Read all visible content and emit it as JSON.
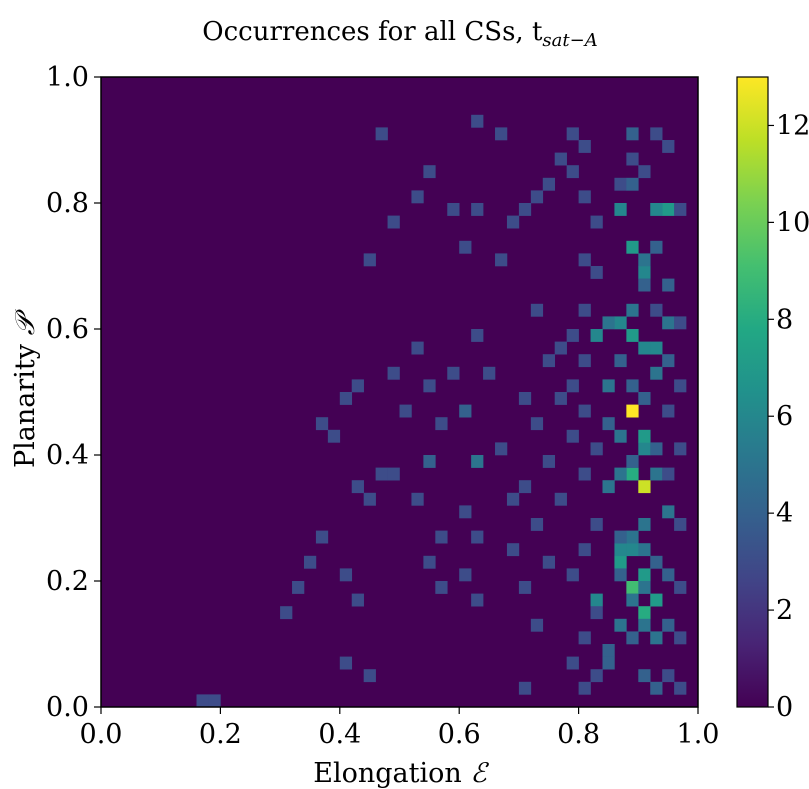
{
  "chart_data": {
    "type": "heatmap",
    "title": "Occurrences for all CSs, t",
    "title_subscript": "sat−A",
    "xlabel": "Elongation",
    "xlabel_symbol": "ℰ",
    "ylabel": "Planarity",
    "ylabel_symbol": "𝒫",
    "xlim": [
      0.0,
      1.0
    ],
    "ylim": [
      0.0,
      1.0
    ],
    "xticks": [
      0.0,
      0.2,
      0.4,
      0.6,
      0.8,
      1.0
    ],
    "xtick_labels": [
      "0.0",
      "0.2",
      "0.4",
      "0.6",
      "0.8",
      "1.0"
    ],
    "yticks": [
      0.0,
      0.2,
      0.4,
      0.6,
      0.8,
      1.0
    ],
    "ytick_labels": [
      "0.0",
      "0.2",
      "0.4",
      "0.6",
      "0.8",
      "1.0"
    ],
    "bins": [
      50,
      50
    ],
    "colormap": "viridis",
    "colorbar": {
      "min": 0,
      "max": 13,
      "ticks": [
        0,
        2,
        4,
        6,
        8,
        10,
        12
      ],
      "tick_labels": [
        "0",
        "2",
        "4",
        "6",
        "8",
        "10",
        "12"
      ]
    },
    "cells": [
      [
        0.89,
        0.465,
        13
      ],
      [
        0.91,
        0.34,
        12
      ],
      [
        0.89,
        0.36,
        8
      ],
      [
        0.87,
        0.23,
        7
      ],
      [
        0.89,
        0.19,
        9
      ],
      [
        0.91,
        0.15,
        8
      ],
      [
        0.93,
        0.16,
        7
      ],
      [
        0.91,
        0.21,
        7
      ],
      [
        0.89,
        0.25,
        6
      ],
      [
        0.87,
        0.25,
        6
      ],
      [
        0.91,
        0.41,
        6
      ],
      [
        0.91,
        0.43,
        7
      ],
      [
        0.89,
        0.59,
        7
      ],
      [
        0.87,
        0.61,
        6
      ],
      [
        0.91,
        0.57,
        6
      ],
      [
        0.93,
        0.57,
        6
      ],
      [
        0.95,
        0.61,
        5
      ],
      [
        0.95,
        0.78,
        7
      ],
      [
        0.93,
        0.79,
        6
      ],
      [
        0.87,
        0.79,
        6
      ],
      [
        0.89,
        0.73,
        7
      ],
      [
        0.91,
        0.69,
        6
      ],
      [
        0.83,
        0.59,
        6
      ],
      [
        0.83,
        0.17,
        6
      ],
      [
        0.85,
        0.35,
        5
      ],
      [
        0.85,
        0.61,
        5
      ],
      [
        0.89,
        0.91,
        4
      ],
      [
        0.89,
        0.87,
        3
      ],
      [
        0.87,
        0.83,
        3
      ],
      [
        0.91,
        0.71,
        5
      ],
      [
        0.93,
        0.73,
        4
      ],
      [
        0.91,
        0.67,
        4
      ],
      [
        0.89,
        0.63,
        5
      ],
      [
        0.87,
        0.55,
        4
      ],
      [
        0.85,
        0.51,
        5
      ],
      [
        0.89,
        0.51,
        4
      ],
      [
        0.93,
        0.53,
        5
      ],
      [
        0.95,
        0.55,
        4
      ],
      [
        0.91,
        0.49,
        4
      ],
      [
        0.85,
        0.45,
        4
      ],
      [
        0.87,
        0.43,
        5
      ],
      [
        0.93,
        0.41,
        4
      ],
      [
        0.89,
        0.39,
        4
      ],
      [
        0.87,
        0.37,
        5
      ],
      [
        0.93,
        0.37,
        5
      ],
      [
        0.95,
        0.31,
        5
      ],
      [
        0.91,
        0.29,
        5
      ],
      [
        0.89,
        0.27,
        5
      ],
      [
        0.87,
        0.27,
        4
      ],
      [
        0.91,
        0.25,
        5
      ],
      [
        0.93,
        0.23,
        4
      ],
      [
        0.87,
        0.21,
        4
      ],
      [
        0.91,
        0.19,
        5
      ],
      [
        0.89,
        0.17,
        5
      ],
      [
        0.87,
        0.13,
        5
      ],
      [
        0.89,
        0.11,
        4
      ],
      [
        0.91,
        0.13,
        5
      ],
      [
        0.93,
        0.11,
        5
      ],
      [
        0.85,
        0.07,
        4
      ],
      [
        0.91,
        0.05,
        4
      ],
      [
        0.93,
        0.03,
        4
      ],
      [
        0.85,
        0.09,
        4
      ],
      [
        0.95,
        0.21,
        4
      ],
      [
        0.95,
        0.13,
        4
      ],
      [
        0.61,
        0.47,
        4
      ],
      [
        0.63,
        0.39,
        5
      ],
      [
        0.55,
        0.39,
        4
      ],
      [
        0.47,
        0.37,
        3
      ],
      [
        0.47,
        0.91,
        3
      ],
      [
        0.89,
        0.83,
        4
      ],
      [
        0.91,
        0.85,
        3
      ],
      [
        0.93,
        0.91,
        3
      ],
      [
        0.95,
        0.89,
        3
      ],
      [
        0.97,
        0.79,
        3
      ],
      [
        0.93,
        0.63,
        3
      ],
      [
        0.97,
        0.61,
        3
      ],
      [
        0.95,
        0.67,
        4
      ],
      [
        0.97,
        0.51,
        3
      ],
      [
        0.95,
        0.47,
        3
      ],
      [
        0.97,
        0.41,
        3
      ],
      [
        0.95,
        0.37,
        3
      ],
      [
        0.97,
        0.29,
        3
      ],
      [
        0.97,
        0.19,
        3
      ],
      [
        0.97,
        0.11,
        3
      ],
      [
        0.95,
        0.05,
        3
      ],
      [
        0.97,
        0.03,
        3
      ],
      [
        0.83,
        0.77,
        3
      ],
      [
        0.81,
        0.71,
        3
      ],
      [
        0.83,
        0.69,
        3
      ],
      [
        0.81,
        0.63,
        3
      ],
      [
        0.79,
        0.59,
        3
      ],
      [
        0.77,
        0.57,
        3
      ],
      [
        0.81,
        0.55,
        3
      ],
      [
        0.79,
        0.51,
        3
      ],
      [
        0.77,
        0.49,
        3
      ],
      [
        0.81,
        0.47,
        3
      ],
      [
        0.79,
        0.43,
        3
      ],
      [
        0.83,
        0.41,
        3
      ],
      [
        0.81,
        0.37,
        3
      ],
      [
        0.77,
        0.33,
        3
      ],
      [
        0.83,
        0.29,
        3
      ],
      [
        0.81,
        0.25,
        3
      ],
      [
        0.79,
        0.21,
        3
      ],
      [
        0.83,
        0.15,
        3
      ],
      [
        0.81,
        0.11,
        3
      ],
      [
        0.79,
        0.07,
        3
      ],
      [
        0.83,
        0.05,
        3
      ],
      [
        0.81,
        0.03,
        3
      ],
      [
        0.73,
        0.63,
        3
      ],
      [
        0.75,
        0.55,
        3
      ],
      [
        0.71,
        0.49,
        3
      ],
      [
        0.73,
        0.45,
        3
      ],
      [
        0.75,
        0.39,
        3
      ],
      [
        0.71,
        0.35,
        3
      ],
      [
        0.73,
        0.29,
        3
      ],
      [
        0.75,
        0.23,
        3
      ],
      [
        0.71,
        0.19,
        3
      ],
      [
        0.73,
        0.13,
        3
      ],
      [
        0.69,
        0.33,
        3
      ],
      [
        0.67,
        0.41,
        3
      ],
      [
        0.69,
        0.25,
        3
      ],
      [
        0.71,
        0.03,
        3
      ],
      [
        0.63,
        0.59,
        3
      ],
      [
        0.65,
        0.53,
        3
      ],
      [
        0.61,
        0.31,
        3
      ],
      [
        0.63,
        0.27,
        3
      ],
      [
        0.61,
        0.21,
        3
      ],
      [
        0.63,
        0.17,
        3
      ],
      [
        0.57,
        0.27,
        3
      ],
      [
        0.57,
        0.19,
        3
      ],
      [
        0.53,
        0.33,
        3
      ],
      [
        0.55,
        0.23,
        3
      ],
      [
        0.49,
        0.37,
        3
      ],
      [
        0.45,
        0.33,
        3
      ],
      [
        0.43,
        0.35,
        3
      ],
      [
        0.41,
        0.21,
        3
      ],
      [
        0.43,
        0.17,
        3
      ],
      [
        0.41,
        0.07,
        3
      ],
      [
        0.45,
        0.05,
        3
      ],
      [
        0.71,
        0.79,
        3
      ],
      [
        0.69,
        0.77,
        3
      ],
      [
        0.73,
        0.81,
        3
      ],
      [
        0.75,
        0.83,
        3
      ],
      [
        0.77,
        0.87,
        3
      ],
      [
        0.79,
        0.85,
        3
      ],
      [
        0.81,
        0.81,
        3
      ],
      [
        0.81,
        0.89,
        3
      ],
      [
        0.79,
        0.91,
        3
      ],
      [
        0.67,
        0.91,
        3
      ],
      [
        0.63,
        0.93,
        3
      ],
      [
        0.67,
        0.71,
        3
      ],
      [
        0.61,
        0.73,
        3
      ],
      [
        0.59,
        0.79,
        3
      ],
      [
        0.63,
        0.79,
        3
      ],
      [
        0.55,
        0.85,
        3
      ],
      [
        0.53,
        0.81,
        3
      ],
      [
        0.49,
        0.77,
        3
      ],
      [
        0.45,
        0.71,
        3
      ],
      [
        0.43,
        0.51,
        3
      ],
      [
        0.41,
        0.49,
        3
      ],
      [
        0.37,
        0.45,
        3
      ],
      [
        0.39,
        0.43,
        3
      ],
      [
        0.53,
        0.57,
        3
      ],
      [
        0.49,
        0.53,
        3
      ],
      [
        0.51,
        0.47,
        3
      ],
      [
        0.55,
        0.51,
        3
      ],
      [
        0.59,
        0.53,
        3
      ],
      [
        0.57,
        0.45,
        3
      ],
      [
        0.31,
        0.15,
        3
      ],
      [
        0.35,
        0.23,
        3
      ],
      [
        0.37,
        0.27,
        3
      ],
      [
        0.33,
        0.19,
        3
      ],
      [
        0.19,
        0.01,
        3
      ],
      [
        0.17,
        0.01,
        3
      ]
    ]
  }
}
